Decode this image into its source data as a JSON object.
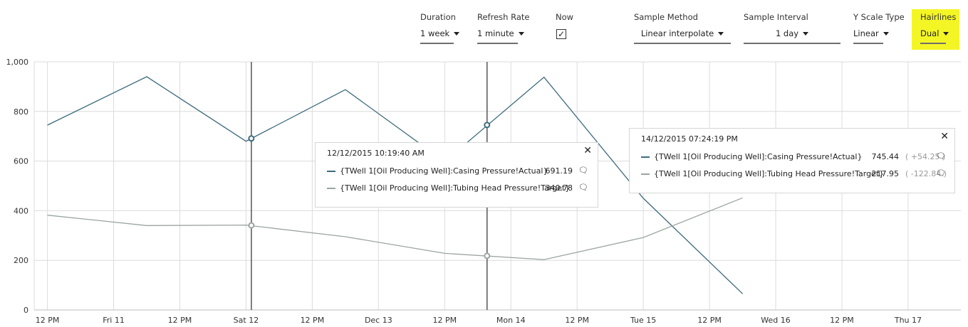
{
  "toolbar": {
    "duration": {
      "label": "Duration",
      "value": "1 week"
    },
    "refresh_rate": {
      "label": "Refresh Rate",
      "value": "1 minute"
    },
    "now": {
      "label": "Now",
      "checked": true,
      "check_mark": "✓"
    },
    "sample_method": {
      "label": "Sample Method",
      "value": "Linear interpolate"
    },
    "sample_interval": {
      "label": "Sample Interval",
      "value": "1 day"
    },
    "y_scale_type": {
      "label": "Y Scale Type",
      "value": "Linear"
    },
    "hairlines": {
      "label": "Hairlines",
      "value": "Dual",
      "highlight_color": "#f4f524"
    }
  },
  "chart_data": {
    "type": "line",
    "ylim": [
      0,
      1000
    ],
    "yticks": [
      0,
      200,
      400,
      600,
      800,
      1000
    ],
    "ytick_labels": [
      "0",
      "200",
      "400",
      "600",
      "800",
      "1,000"
    ],
    "grid": true,
    "xticks": [
      {
        "label": "12 PM"
      },
      {
        "label": "Fri 11"
      },
      {
        "label": "12 PM"
      },
      {
        "label": "Sat 12"
      },
      {
        "label": "12 PM"
      },
      {
        "label": "Dec 13"
      },
      {
        "label": "12 PM"
      },
      {
        "label": "Mon 14"
      },
      {
        "label": "12 PM"
      },
      {
        "label": "Tue 15"
      },
      {
        "label": "12 PM"
      },
      {
        "label": "Wed 16"
      },
      {
        "label": "12 PM"
      },
      {
        "label": "Thu 17"
      }
    ],
    "series": [
      {
        "name": "{TWell 1[Oil Producing Well]:Casing Pressure!Actual}",
        "color": "#3d6b7d",
        "points": [
          {
            "t": 0.0,
            "v": 745
          },
          {
            "t": 1.5,
            "v": 940
          },
          {
            "t": 3.0,
            "v": 680
          },
          {
            "t": 4.5,
            "v": 888
          },
          {
            "t": 6.0,
            "v": 598
          },
          {
            "t": 7.5,
            "v": 938
          },
          {
            "t": 9.0,
            "v": 450
          },
          {
            "t": 10.5,
            "v": 65
          }
        ]
      },
      {
        "name": "{TWell 1[Oil Producing Well]:Tubing Head Pressure!Target}",
        "color": "#9aa5a0",
        "points": [
          {
            "t": 0.0,
            "v": 382
          },
          {
            "t": 1.5,
            "v": 340
          },
          {
            "t": 3.0,
            "v": 342
          },
          {
            "t": 4.5,
            "v": 295
          },
          {
            "t": 6.0,
            "v": 228
          },
          {
            "t": 7.5,
            "v": 203
          },
          {
            "t": 9.0,
            "v": 292
          },
          {
            "t": 10.5,
            "v": 452
          }
        ]
      }
    ],
    "hairlines": [
      {
        "t": 3.08,
        "timestamp": "12/12/2015 10:19:40 AM",
        "values": [
          {
            "series": 0,
            "value": "691.19",
            "v": 691.19,
            "delta": ""
          },
          {
            "series": 1,
            "value": "340.78",
            "v": 340.78,
            "delta": ""
          }
        ]
      },
      {
        "t": 6.64,
        "timestamp": "14/12/2015 07:24:19 PM",
        "values": [
          {
            "series": 0,
            "value": "745.44",
            "v": 745.44,
            "delta": "( +54.25 )"
          },
          {
            "series": 1,
            "value": "217.95",
            "v": 217.95,
            "delta": "( -122.84 )"
          }
        ]
      }
    ]
  }
}
